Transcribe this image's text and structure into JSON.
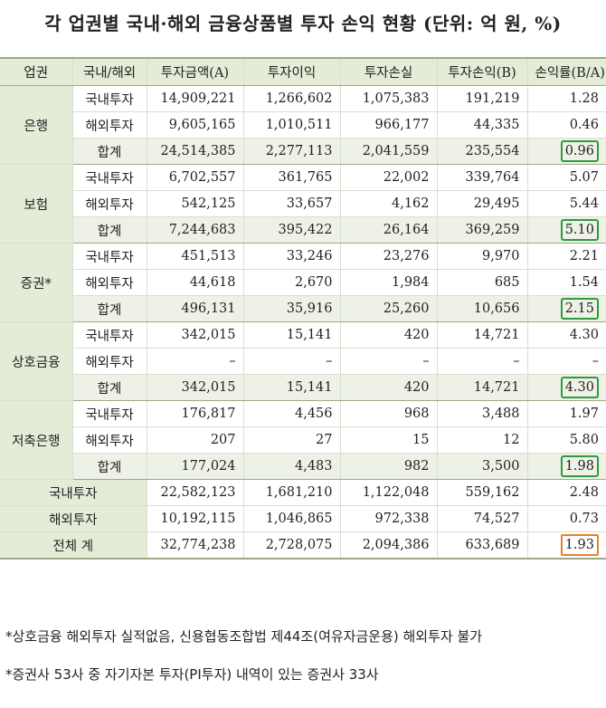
{
  "title": "각 업권별 국내·해외 금융상품별 투자 손익 현황 (단위: 억 원, %)",
  "headers": [
    "업권",
    "국내/해외",
    "투자금액(A)",
    "투자이익",
    "투자손실",
    "투자손익(B)",
    "손익률(B/A)"
  ],
  "sectors": [
    {
      "name": "은행",
      "rows": [
        {
          "label": "국내투자",
          "amount": "14,909,221",
          "profit": "1,266,602",
          "loss": "1,075,383",
          "net": "191,219",
          "rate": "1.28"
        },
        {
          "label": "해외투자",
          "amount": "9,605,165",
          "profit": "1,010,511",
          "loss": "966,177",
          "net": "44,335",
          "rate": "0.46"
        },
        {
          "label": "합계",
          "amount": "24,514,385",
          "profit": "2,277,113",
          "loss": "2,041,559",
          "net": "235,554",
          "rate": "0.96"
        }
      ]
    },
    {
      "name": "보험",
      "rows": [
        {
          "label": "국내투자",
          "amount": "6,702,557",
          "profit": "361,765",
          "loss": "22,002",
          "net": "339,764",
          "rate": "5.07"
        },
        {
          "label": "해외투자",
          "amount": "542,125",
          "profit": "33,657",
          "loss": "4,162",
          "net": "29,495",
          "rate": "5.44"
        },
        {
          "label": "합계",
          "amount": "7,244,683",
          "profit": "395,422",
          "loss": "26,164",
          "net": "369,259",
          "rate": "5.10"
        }
      ]
    },
    {
      "name": "증권*",
      "rows": [
        {
          "label": "국내투자",
          "amount": "451,513",
          "profit": "33,246",
          "loss": "23,276",
          "net": "9,970",
          "rate": "2.21"
        },
        {
          "label": "해외투자",
          "amount": "44,618",
          "profit": "2,670",
          "loss": "1,984",
          "net": "685",
          "rate": "1.54"
        },
        {
          "label": "합계",
          "amount": "496,131",
          "profit": "35,916",
          "loss": "25,260",
          "net": "10,656",
          "rate": "2.15"
        }
      ]
    },
    {
      "name": "상호금융",
      "rows": [
        {
          "label": "국내투자",
          "amount": "342,015",
          "profit": "15,141",
          "loss": "420",
          "net": "14,721",
          "rate": "4.30"
        },
        {
          "label": "해외투자",
          "amount": "–",
          "profit": "–",
          "loss": "–",
          "net": "–",
          "rate": "–"
        },
        {
          "label": "합계",
          "amount": "342,015",
          "profit": "15,141",
          "loss": "420",
          "net": "14,721",
          "rate": "4.30"
        }
      ]
    },
    {
      "name": "저축은행",
      "rows": [
        {
          "label": "국내투자",
          "amount": "176,817",
          "profit": "4,456",
          "loss": "968",
          "net": "3,488",
          "rate": "1.97"
        },
        {
          "label": "해외투자",
          "amount": "207",
          "profit": "27",
          "loss": "15",
          "net": "12",
          "rate": "5.80"
        },
        {
          "label": "합계",
          "amount": "177,024",
          "profit": "4,483",
          "loss": "982",
          "net": "3,500",
          "rate": "1.98"
        }
      ]
    }
  ],
  "totals": [
    {
      "label": "국내투자",
      "amount": "22,582,123",
      "profit": "1,681,210",
      "loss": "1,122,048",
      "net": "559,162",
      "rate": "2.48"
    },
    {
      "label": "해외투자",
      "amount": "10,192,115",
      "profit": "1,046,865",
      "loss": "972,338",
      "net": "74,527",
      "rate": "0.73"
    },
    {
      "label": "전체 계",
      "amount": "32,774,238",
      "profit": "2,728,075",
      "loss": "2,094,386",
      "net": "633,689",
      "rate": "1.93"
    }
  ],
  "notes": [
    "*상호금융 해외투자 실적없음, 신용협동조합법 제44조(여유자금운용) 해외투자 불가",
    "*증권사 53사 중 자기자본 투자(PI투자) 내역이 있는 증권사 33사"
  ],
  "highlight_colors": {
    "subtotal": "#2f9a3e",
    "grand_total": "#e8822a"
  }
}
